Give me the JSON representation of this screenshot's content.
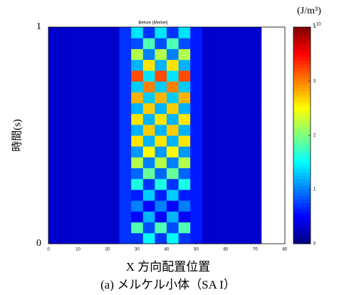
{
  "chart_data": {
    "type": "heatmap",
    "title": "Before (Merkel)",
    "x_label": "X 方向配置位置",
    "y_label": "時間(s)",
    "caption": "(a) メルケル小体（SA I）",
    "colorbar_label": "(J/m³)",
    "colorbar_exponent": "x 10",
    "xlim": [
      0,
      80
    ],
    "xticks": [
      0,
      10,
      20,
      30,
      40,
      50,
      60,
      70,
      80
    ],
    "ylim": [
      0,
      1
    ],
    "yticks": [
      0,
      1
    ],
    "clim": [
      0,
      4
    ],
    "cticks": [
      0,
      1,
      2,
      3,
      4
    ],
    "colormap": "jet",
    "x": [
      0,
      4,
      8,
      12,
      16,
      20,
      24,
      28,
      32,
      36,
      40,
      44,
      48,
      52,
      56,
      60,
      64,
      68,
      72
    ],
    "y": [
      0,
      0.05,
      0.1,
      0.15,
      0.2,
      0.25,
      0.3,
      0.35,
      0.4,
      0.45,
      0.5,
      0.55,
      0.6,
      0.65,
      0.7,
      0.75,
      0.8,
      0.85,
      0.9,
      0.95,
      1
    ],
    "z": [
      [
        0.3,
        0.3,
        0.3,
        0.3,
        0.3,
        0.3,
        0.7,
        0.7,
        1.5,
        0.7,
        1.5,
        0.7,
        0.6,
        0.3,
        0.3,
        0.3,
        0.3,
        0.3
      ],
      [
        0.3,
        0.3,
        0.3,
        0.3,
        0.3,
        0.3,
        0.7,
        1.8,
        0.8,
        1.8,
        0.8,
        1.8,
        0.6,
        0.3,
        0.3,
        0.3,
        0.3,
        0.3
      ],
      [
        0.3,
        0.3,
        0.3,
        0.3,
        0.3,
        0.3,
        0.7,
        0.5,
        1.2,
        0.5,
        1.2,
        0.5,
        0.6,
        0.3,
        0.3,
        0.3,
        0.3,
        0.3
      ],
      [
        0.3,
        0.3,
        0.3,
        0.3,
        0.3,
        0.3,
        0.7,
        1.0,
        0.5,
        1.0,
        0.5,
        1.0,
        0.6,
        0.3,
        0.3,
        0.3,
        0.3,
        0.3
      ],
      [
        0.3,
        0.3,
        0.3,
        0.3,
        0.3,
        0.3,
        0.7,
        0.6,
        1.3,
        0.6,
        1.3,
        0.6,
        0.6,
        0.3,
        0.3,
        0.3,
        0.3,
        0.3
      ],
      [
        0.3,
        0.3,
        0.3,
        0.3,
        0.3,
        0.3,
        0.7,
        1.6,
        0.7,
        1.6,
        0.7,
        1.6,
        0.6,
        0.3,
        0.3,
        0.3,
        0.3,
        0.3
      ],
      [
        0.3,
        0.3,
        0.3,
        0.3,
        0.3,
        0.3,
        0.7,
        0.9,
        1.9,
        0.9,
        1.9,
        0.9,
        0.6,
        0.3,
        0.3,
        0.3,
        0.3,
        0.3
      ],
      [
        0.3,
        0.3,
        0.3,
        0.3,
        0.3,
        0.3,
        0.7,
        2.2,
        1.0,
        2.2,
        1.0,
        2.2,
        0.6,
        0.3,
        0.3,
        0.3,
        0.3,
        0.3
      ],
      [
        0.3,
        0.3,
        0.3,
        0.3,
        0.3,
        0.3,
        0.7,
        1.1,
        2.5,
        1.1,
        2.5,
        1.1,
        0.6,
        0.3,
        0.3,
        0.3,
        0.3,
        0.3
      ],
      [
        0.3,
        0.3,
        0.3,
        0.3,
        0.3,
        0.3,
        0.7,
        2.6,
        1.2,
        2.6,
        1.2,
        2.6,
        0.6,
        0.3,
        0.3,
        0.3,
        0.3,
        0.3
      ],
      [
        0.3,
        0.3,
        0.3,
        0.3,
        0.3,
        0.3,
        0.7,
        1.2,
        2.7,
        1.2,
        2.7,
        1.2,
        0.6,
        0.3,
        0.3,
        0.3,
        0.3,
        0.3
      ],
      [
        0.3,
        0.3,
        0.3,
        0.3,
        0.3,
        0.3,
        0.7,
        2.6,
        1.2,
        2.6,
        1.2,
        2.6,
        0.6,
        0.3,
        0.3,
        0.3,
        0.3,
        0.3
      ],
      [
        0.3,
        0.3,
        0.3,
        0.3,
        0.3,
        0.3,
        0.7,
        1.2,
        2.7,
        1.2,
        2.7,
        1.2,
        0.6,
        0.3,
        0.3,
        0.3,
        0.3,
        0.3
      ],
      [
        0.3,
        0.3,
        0.3,
        0.3,
        0.3,
        0.3,
        0.7,
        2.8,
        1.3,
        2.8,
        1.3,
        2.8,
        0.6,
        0.3,
        0.3,
        0.3,
        0.3,
        0.3
      ],
      [
        0.3,
        0.3,
        0.3,
        0.3,
        0.3,
        0.3,
        0.7,
        1.3,
        3.0,
        1.3,
        3.0,
        1.3,
        0.6,
        0.3,
        0.3,
        0.3,
        0.3,
        0.3
      ],
      [
        0.3,
        0.3,
        0.3,
        0.3,
        0.3,
        0.3,
        0.7,
        3.2,
        1.4,
        3.2,
        1.4,
        3.2,
        0.6,
        0.3,
        0.3,
        0.3,
        0.3,
        0.3
      ],
      [
        0.3,
        0.3,
        0.3,
        0.3,
        0.3,
        0.3,
        0.7,
        1.2,
        2.6,
        1.2,
        2.6,
        1.2,
        0.6,
        0.3,
        0.3,
        0.3,
        0.3,
        0.3
      ],
      [
        0.3,
        0.3,
        0.3,
        0.3,
        0.3,
        0.3,
        0.7,
        2.2,
        1.0,
        2.2,
        1.0,
        2.2,
        0.6,
        0.3,
        0.3,
        0.3,
        0.3,
        0.3
      ],
      [
        0.3,
        0.3,
        0.3,
        0.3,
        0.3,
        0.3,
        0.7,
        0.8,
        1.8,
        0.8,
        1.8,
        0.8,
        0.6,
        0.3,
        0.3,
        0.3,
        0.3,
        0.3
      ],
      [
        0.3,
        0.3,
        0.3,
        0.3,
        0.3,
        0.3,
        0.7,
        1.4,
        0.7,
        1.4,
        0.7,
        1.4,
        0.6,
        0.3,
        0.3,
        0.3,
        0.3,
        0.3
      ]
    ]
  }
}
